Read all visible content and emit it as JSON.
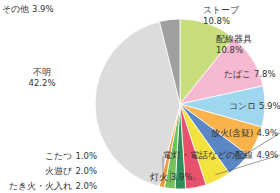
{
  "chart_data": {
    "type": "pie",
    "categories": [
      "ストーブ",
      "配線器具",
      "たばこ",
      "コンロ",
      "放火(含疑)",
      "電灯・電話などの配線",
      "灯火",
      "たき火・火入れ",
      "火遊び",
      "こたつ",
      "不明",
      "その他"
    ],
    "values": [
      10.8,
      10.8,
      7.8,
      5.9,
      4.9,
      4.9,
      3.9,
      2.0,
      2.0,
      1.0,
      42.2,
      3.9
    ],
    "value_labels": [
      "10.8%",
      "10.8%",
      "7.8%",
      "5.9%",
      "4.9%",
      "4.9%",
      "3.9%",
      "2.0%",
      "2.0%",
      "1.0%",
      "42.2%",
      "3.9%"
    ],
    "colors": [
      "#c8de7c",
      "#f5b9d2",
      "#9fd6f0",
      "#f8b34c",
      "#5b87c6",
      "#f4e23e",
      "#e9506b",
      "#2f8f5a",
      "#74c15e",
      "#f39a3a",
      "#dcdcdc",
      "#a0a0a0"
    ],
    "data_labels": true
  }
}
